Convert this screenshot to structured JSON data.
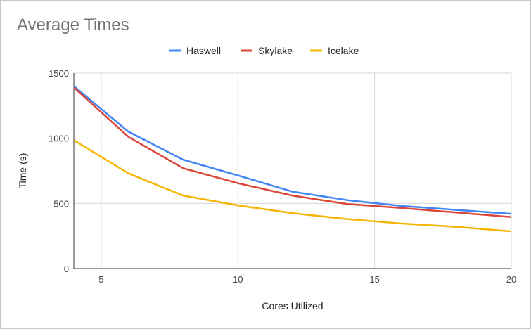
{
  "chart_data": {
    "type": "line",
    "title": "Average Times",
    "xlabel": "Cores Utilized",
    "ylabel": "Time (s)",
    "xlim": [
      4,
      20
    ],
    "ylim": [
      0,
      1500
    ],
    "x_ticks": [
      "5",
      "10",
      "15",
      "20"
    ],
    "y_ticks": [
      "0",
      "500",
      "1000",
      "1500"
    ],
    "grid": true,
    "legend_position": "top",
    "x": [
      4,
      6,
      8,
      10,
      12,
      14,
      16,
      18,
      20
    ],
    "series": [
      {
        "name": "Haswell",
        "color": "#4285f4",
        "values": [
          1400,
          1050,
          835,
          715,
          590,
          525,
          480,
          450,
          420
        ]
      },
      {
        "name": "Skylake",
        "color": "#db4437",
        "values": [
          1390,
          1010,
          770,
          655,
          560,
          495,
          465,
          430,
          395
        ]
      },
      {
        "name": "Icelake",
        "color": "#f4b400",
        "values": [
          985,
          730,
          560,
          485,
          425,
          380,
          345,
          320,
          285
        ]
      }
    ]
  }
}
